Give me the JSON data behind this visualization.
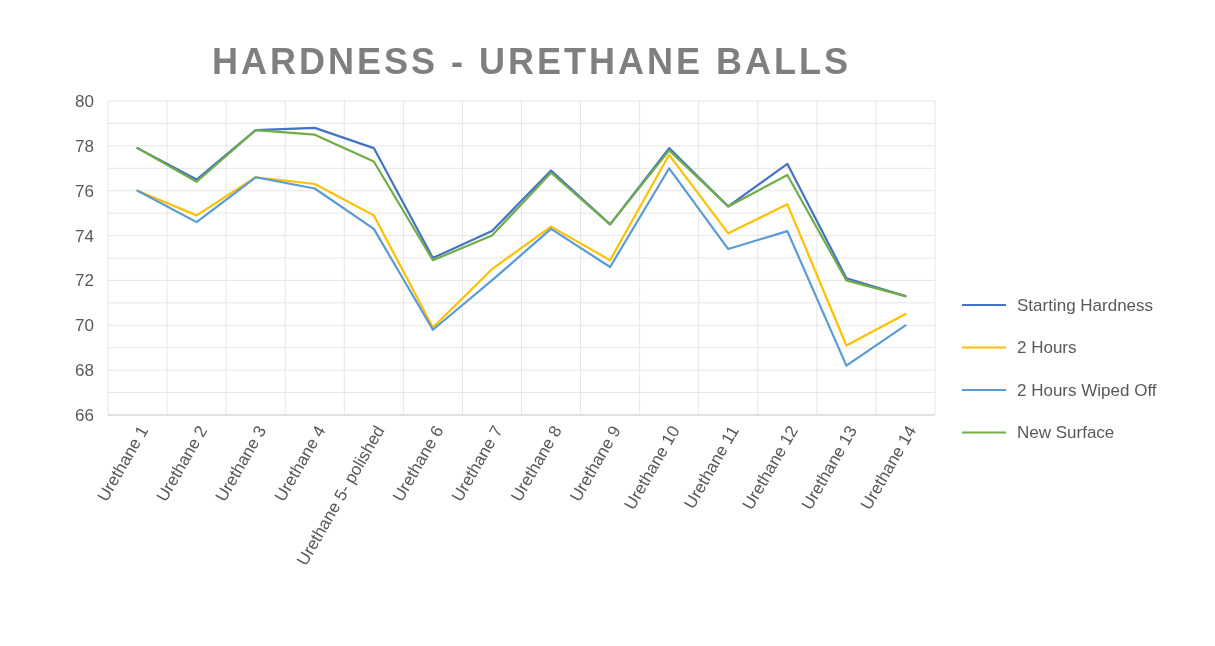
{
  "chart_data": {
    "type": "line",
    "title": "HARDNESS - URETHANE BALLS",
    "categories": [
      "Urethane 1",
      "Urethane 2",
      "Urethane 3",
      "Urethane 4",
      "Urethane 5- polished",
      "Urethane 6",
      "Urethane 7",
      "Urethane 8",
      "Urethane 9",
      "Urethane 10",
      "Urethane 11",
      "Urethane 12",
      "Urethane 13",
      "Urethane 14"
    ],
    "series": [
      {
        "name": "Starting Hardness",
        "color": "#4472c4",
        "values": [
          77.9,
          76.5,
          78.7,
          78.8,
          77.9,
          73.0,
          74.2,
          76.9,
          74.5,
          77.9,
          75.3,
          77.2,
          72.1,
          71.3
        ]
      },
      {
        "name": "2 Hours",
        "color": "#ffc000",
        "values": [
          76.0,
          74.9,
          76.6,
          76.3,
          74.9,
          69.9,
          72.5,
          74.4,
          72.9,
          77.6,
          74.1,
          75.4,
          69.1,
          70.5
        ]
      },
      {
        "name": "2 Hours Wiped Off",
        "color": "#5b9bd5",
        "values": [
          76.0,
          74.6,
          76.6,
          76.1,
          74.3,
          69.8,
          72.0,
          74.3,
          72.6,
          77.0,
          73.4,
          74.2,
          68.2,
          70.0
        ]
      },
      {
        "name": "New Surface",
        "color": "#70ad47",
        "values": [
          77.9,
          76.4,
          78.7,
          78.5,
          77.3,
          72.9,
          74.0,
          76.8,
          74.5,
          77.8,
          75.3,
          76.7,
          72.0,
          71.3
        ]
      }
    ],
    "ylim": [
      66,
      80
    ],
    "yticks": [
      66,
      {
        "value": 67,
        "label": null
      },
      68,
      {
        "value": 69,
        "label": null
      },
      70,
      {
        "value": 71,
        "label": null
      },
      72,
      {
        "value": 73,
        "label": null
      },
      74,
      {
        "value": 75,
        "label": null
      },
      76,
      {
        "value": 77,
        "label": null
      },
      78,
      {
        "value": 79,
        "label": null
      },
      80
    ],
    "grid": true,
    "legend": "right",
    "marker": "none",
    "line_style": "solid"
  }
}
